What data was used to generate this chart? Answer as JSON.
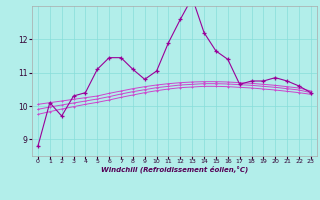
{
  "x": [
    0,
    1,
    2,
    3,
    4,
    5,
    6,
    7,
    8,
    9,
    10,
    11,
    12,
    13,
    14,
    15,
    16,
    17,
    18,
    19,
    20,
    21,
    22,
    23
  ],
  "y_main": [
    8.8,
    10.1,
    9.7,
    10.3,
    10.4,
    11.1,
    11.45,
    11.45,
    11.1,
    10.8,
    11.05,
    11.9,
    12.6,
    13.25,
    12.2,
    11.65,
    11.4,
    10.65,
    10.75,
    10.75,
    10.85,
    10.75,
    10.6,
    10.4
  ],
  "y_smooth1": [
    10.05,
    10.1,
    10.15,
    10.2,
    10.25,
    10.3,
    10.38,
    10.45,
    10.52,
    10.58,
    10.63,
    10.67,
    10.7,
    10.72,
    10.73,
    10.73,
    10.72,
    10.7,
    10.68,
    10.65,
    10.62,
    10.58,
    10.54,
    10.45
  ],
  "y_smooth2": [
    9.9,
    9.97,
    10.03,
    10.09,
    10.15,
    10.21,
    10.28,
    10.36,
    10.43,
    10.49,
    10.55,
    10.59,
    10.63,
    10.65,
    10.67,
    10.67,
    10.66,
    10.64,
    10.62,
    10.59,
    10.56,
    10.52,
    10.48,
    10.4
  ],
  "y_smooth3": [
    9.75,
    9.83,
    9.91,
    9.98,
    10.05,
    10.11,
    10.18,
    10.26,
    10.33,
    10.4,
    10.46,
    10.51,
    10.55,
    10.57,
    10.59,
    10.59,
    10.58,
    10.56,
    10.54,
    10.51,
    10.48,
    10.44,
    10.4,
    10.35
  ],
  "color_main": "#990099",
  "color_smooth1": "#cc44cc",
  "color_smooth2": "#cc44cc",
  "color_smooth3": "#cc44cc",
  "bg_color": "#b2eeea",
  "grid_color": "#88ddda",
  "xlabel": "Windchill (Refroidissement éolien,°C)",
  "xlim": [
    -0.5,
    23.5
  ],
  "ylim": [
    8.5,
    13.0
  ],
  "yticks": [
    9,
    10,
    11,
    12
  ],
  "xticks": [
    0,
    1,
    2,
    3,
    4,
    5,
    6,
    7,
    8,
    9,
    10,
    11,
    12,
    13,
    14,
    15,
    16,
    17,
    18,
    19,
    20,
    21,
    22,
    23
  ]
}
